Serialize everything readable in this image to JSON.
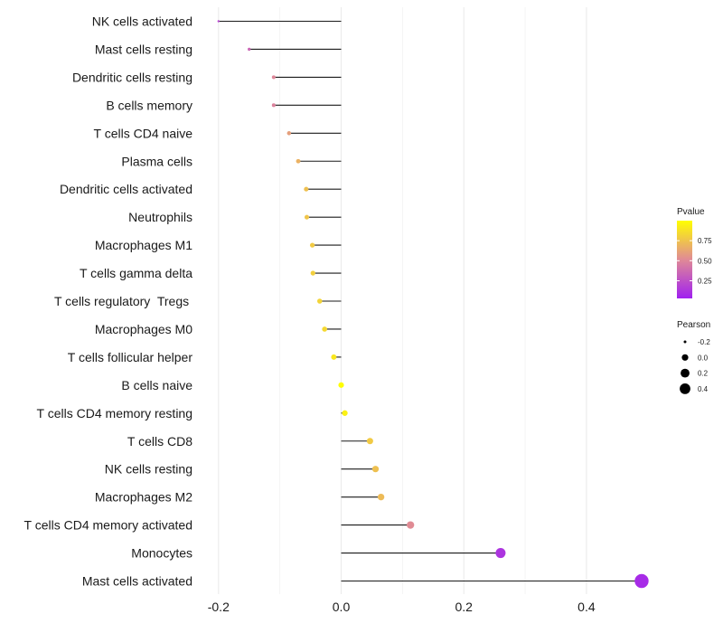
{
  "chart_data": {
    "type": "lollipop",
    "orientation": "horizontal",
    "categories": [
      "NK cells activated",
      "Mast cells resting",
      "Dendritic cells resting",
      "B cells memory",
      "T cells CD4 naive",
      "Plasma cells",
      "Dendritic cells activated",
      "Neutrophils",
      "Macrophages M1",
      "T cells gamma delta",
      "T cells regulatory  Tregs ",
      "Macrophages M0",
      "T cells follicular helper",
      "B cells naive",
      "T cells CD4 memory resting",
      "T cells CD8",
      "NK cells resting",
      "Macrophages M2",
      "T cells CD4 memory activated",
      "Monocytes",
      "Mast cells activated"
    ],
    "values": [
      -0.2,
      -0.15,
      -0.11,
      -0.11,
      -0.085,
      -0.07,
      -0.057,
      -0.056,
      -0.047,
      -0.046,
      -0.035,
      -0.027,
      -0.012,
      0.0,
      0.006,
      0.047,
      0.056,
      0.065,
      0.113,
      0.26,
      0.49
    ],
    "pvalues": [
      0.2,
      0.35,
      0.5,
      0.48,
      0.6,
      0.68,
      0.74,
      0.76,
      0.78,
      0.8,
      0.82,
      0.84,
      0.9,
      0.99,
      0.94,
      0.78,
      0.74,
      0.72,
      0.52,
      0.12,
      0.08
    ],
    "xlim": [
      -0.2,
      0.5
    ],
    "xticks": [
      -0.2,
      0.0,
      0.2,
      0.4
    ],
    "xtick_labels": [
      "-0.2",
      "0.0",
      "0.2",
      "0.4"
    ],
    "title": "",
    "xlabel": "",
    "ylabel": "",
    "color_legend": {
      "title": "Pvalue",
      "ticks": [
        0.25,
        0.5,
        0.75
      ],
      "tick_labels": [
        "0.25",
        "0.50",
        "0.75"
      ],
      "range": [
        0.03,
        1.0
      ],
      "low_color": "#a020f0",
      "mid_color": "#e08a96",
      "high_color": "#ffff00"
    },
    "size_legend": {
      "title": "Pearson",
      "values": [
        -0.2,
        0.0,
        0.2,
        0.4
      ],
      "labels": [
        "-0.2",
        "0.0",
        "0.2",
        "0.4"
      ]
    },
    "segment_color": "#1a1a1a",
    "grid": true,
    "legend_position": "right"
  }
}
